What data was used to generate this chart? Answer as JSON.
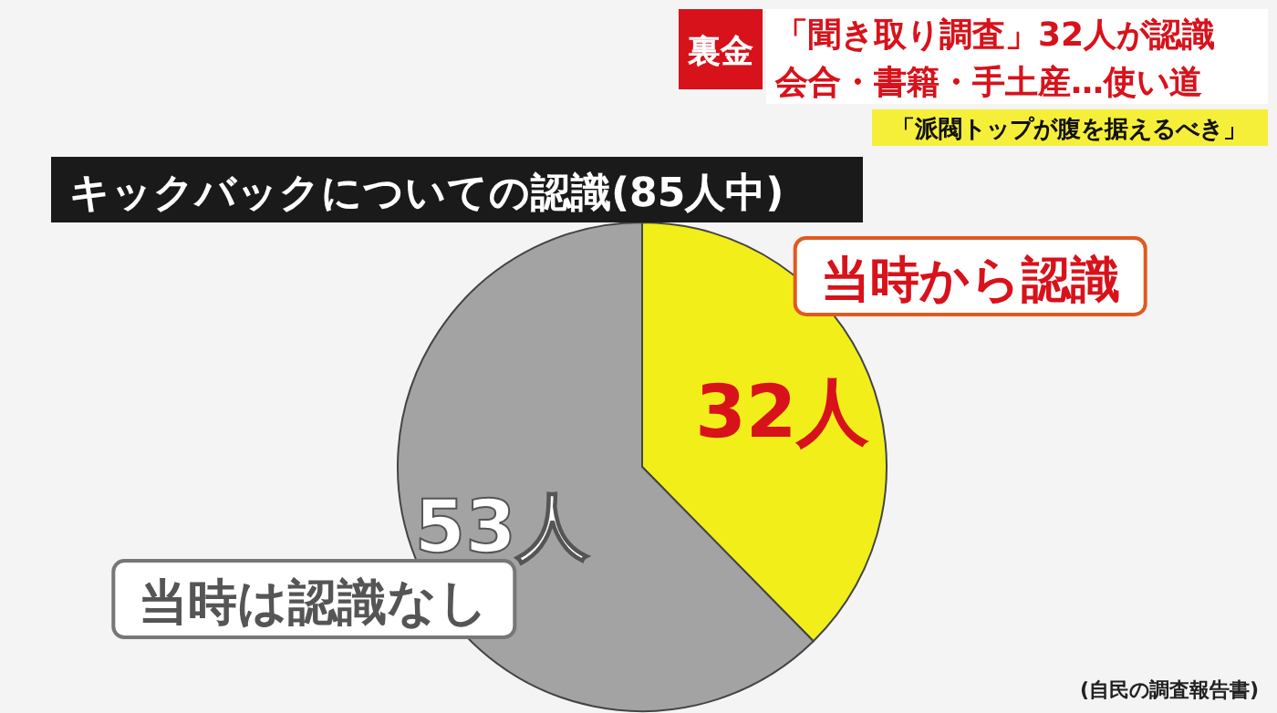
{
  "chart_data": {
    "type": "pie",
    "title": "キックバックについての認識(85人中)",
    "categories": [
      "当時から認識",
      "当時は認識なし"
    ],
    "values": [
      32,
      53
    ],
    "colors": [
      "#f2ee1a",
      "#a3a3a3"
    ],
    "value_labels": [
      "32人",
      "53人"
    ],
    "annotations": [
      "裏金",
      "「聞き取り調査」32人が認識",
      "会合・書籍・手土産…使い道",
      "「派閥トップが腹を据えるべき」",
      "(自民の調査報告書)"
    ]
  }
}
